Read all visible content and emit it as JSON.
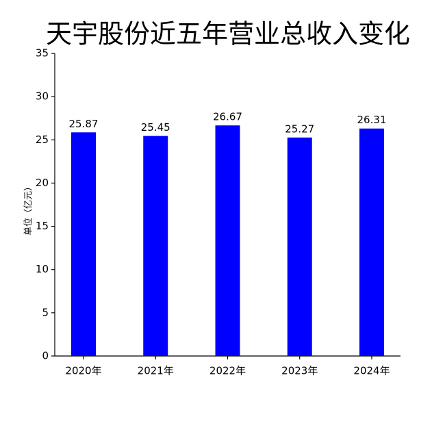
{
  "chart_data": {
    "type": "bar",
    "title": "天宇股份近五年营业总收入变化",
    "y_label": "单位（亿元）",
    "categories": [
      "2020年",
      "2021年",
      "2022年",
      "2023年",
      "2024年"
    ],
    "values": [
      25.87,
      25.45,
      26.67,
      25.27,
      26.31
    ],
    "color": "#0000ff",
    "ylim": [
      0,
      35
    ],
    "yticks": [
      0,
      5,
      10,
      15,
      20,
      25,
      30,
      35
    ],
    "grid": false
  }
}
